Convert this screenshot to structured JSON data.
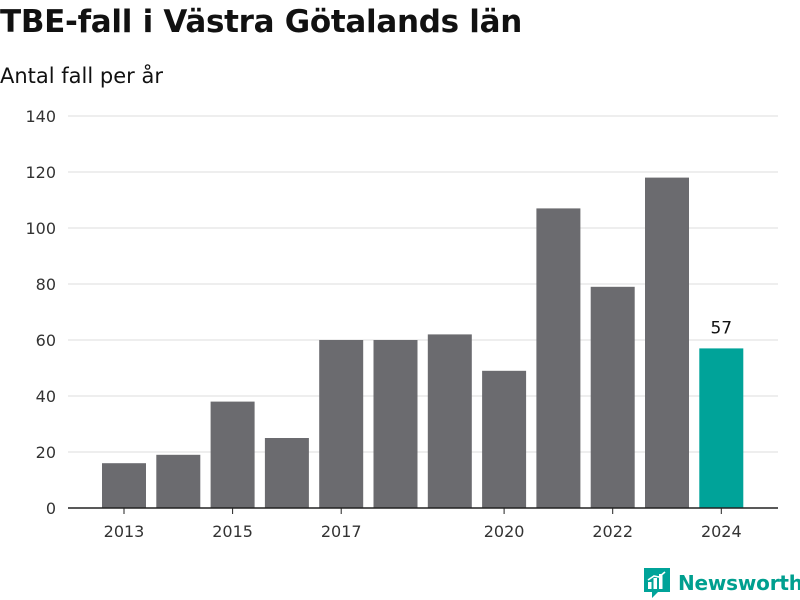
{
  "title": "TBE-fall i Västra Götalands län",
  "subtitle": "Antal fall per år",
  "brand": {
    "name": "Newsworthy",
    "icon": "chart-logo-icon"
  },
  "colors": {
    "bar": "#6b6b6f",
    "highlight": "#00a399",
    "grid": "#dddddd",
    "axis": "#222222"
  },
  "chart_data": {
    "type": "bar",
    "title": "TBE-fall i Västra Götalands län",
    "subtitle": "Antal fall per år",
    "categories": [
      "2013",
      "2014",
      "2015",
      "2016",
      "2017",
      "2018",
      "2019",
      "2020",
      "2021",
      "2022",
      "2023",
      "2024"
    ],
    "values": [
      16,
      19,
      38,
      25,
      60,
      60,
      62,
      49,
      107,
      79,
      118,
      57
    ],
    "x_tick_labels": [
      "2013",
      "2015",
      "2017",
      "2020",
      "2022",
      "2024"
    ],
    "y_ticks": [
      0,
      20,
      40,
      60,
      80,
      100,
      120,
      140
    ],
    "ylim": [
      0,
      140
    ],
    "highlight_category": "2024",
    "data_labels": [
      {
        "category": "2024",
        "text": "57"
      }
    ],
    "grid": true,
    "legend": "none"
  }
}
